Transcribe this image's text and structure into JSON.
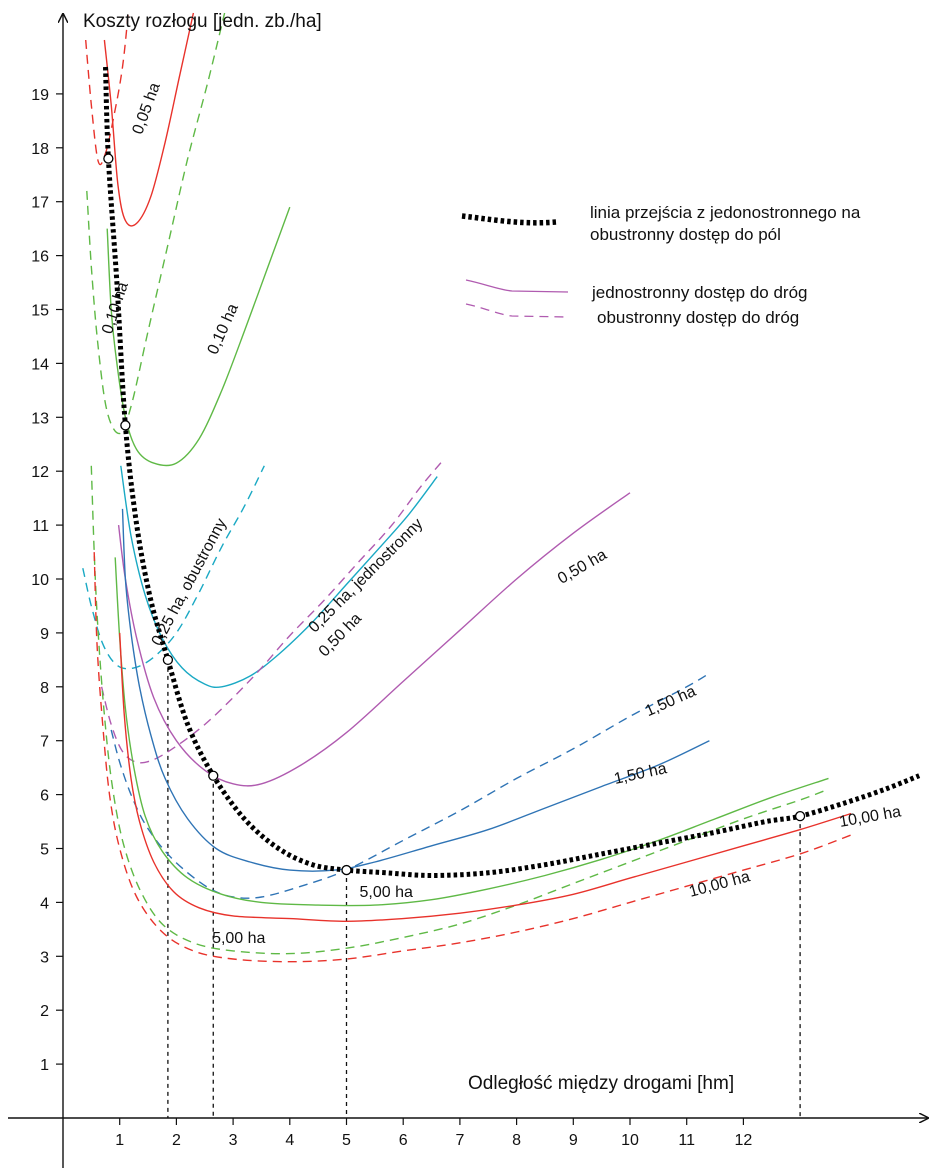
{
  "chart_data": {
    "type": "line",
    "ylabel": "Koszty rozłogu [jedn. zb./ha]",
    "xlabel": "Odległość między drogami [hm]",
    "xlim": [
      0,
      15.1
    ],
    "ylim": [
      0,
      20.5
    ],
    "x_ticks": [
      "1",
      "2",
      "3",
      "4",
      "5",
      "6",
      "7",
      "8",
      "9",
      "10",
      "11",
      "12"
    ],
    "y_ticks": [
      "1",
      "2",
      "3",
      "4",
      "5",
      "6",
      "7",
      "8",
      "9",
      "10",
      "11",
      "12",
      "13",
      "14",
      "15",
      "16",
      "17",
      "18",
      "19"
    ],
    "legend": {
      "transition": "linia przejścia z jedonostronnego na obustronny dostęp do pól",
      "one_sided": "jednostronny dostęp do dróg",
      "two_sided": "obustronny dostęp do dróg"
    },
    "colors": {
      "red": "#e8322b",
      "green": "#5fb946",
      "cyan": "#1aa9c4",
      "magenta": "#b05bb0",
      "blue": "#2f74b5",
      "transition": "#000000"
    },
    "series": [
      {
        "name": "0,05 ha",
        "access": "jednostronny",
        "color": "red",
        "points": [
          [
            0.73,
            20.0
          ],
          [
            0.85,
            18.8
          ],
          [
            0.97,
            17.3
          ],
          [
            1.1,
            16.65
          ],
          [
            1.3,
            16.6
          ],
          [
            1.55,
            17.1
          ],
          [
            1.8,
            18.1
          ],
          [
            2.05,
            19.3
          ],
          [
            2.3,
            20.5
          ]
        ]
      },
      {
        "name": "0,05 ha",
        "access": "obustronny",
        "color": "red",
        "points": [
          [
            0.4,
            20.0
          ],
          [
            0.5,
            18.8
          ],
          [
            0.62,
            17.75
          ],
          [
            0.75,
            17.9
          ],
          [
            0.9,
            18.6
          ],
          [
            1.05,
            19.5
          ],
          [
            1.15,
            20.5
          ]
        ]
      },
      {
        "name": "0,10 ha",
        "access": "jednostronny",
        "color": "green",
        "points": [
          [
            0.78,
            16.5
          ],
          [
            0.85,
            15.0
          ],
          [
            0.95,
            14.0
          ],
          [
            1.1,
            13.0
          ],
          [
            1.3,
            12.4
          ],
          [
            1.6,
            12.15
          ],
          [
            2.0,
            12.15
          ],
          [
            2.4,
            12.6
          ],
          [
            2.8,
            13.5
          ],
          [
            3.2,
            14.6
          ],
          [
            3.6,
            15.75
          ],
          [
            4.0,
            16.9
          ]
        ]
      },
      {
        "name": "0,10 ha",
        "access": "obustronny",
        "color": "green",
        "points": [
          [
            0.42,
            17.2
          ],
          [
            0.5,
            15.8
          ],
          [
            0.62,
            14.3
          ],
          [
            0.78,
            13.1
          ],
          [
            1.0,
            12.7
          ],
          [
            1.2,
            13.2
          ],
          [
            1.5,
            14.6
          ],
          [
            1.85,
            16.2
          ],
          [
            2.2,
            17.8
          ],
          [
            2.55,
            19.2
          ],
          [
            2.85,
            20.5
          ]
        ]
      },
      {
        "name": "0,25 ha, obustronny",
        "access": "obustronny",
        "color": "cyan",
        "points": [
          [
            0.35,
            10.2
          ],
          [
            0.5,
            9.5
          ],
          [
            0.7,
            8.8
          ],
          [
            0.95,
            8.4
          ],
          [
            1.25,
            8.35
          ],
          [
            1.6,
            8.55
          ],
          [
            2.0,
            9.0
          ],
          [
            2.4,
            9.75
          ],
          [
            2.8,
            10.6
          ],
          [
            3.2,
            11.35
          ],
          [
            3.55,
            12.1
          ]
        ]
      },
      {
        "name": "0,25 ha, jednostronny",
        "access": "jednostronny",
        "color": "cyan",
        "points": [
          [
            1.02,
            12.1
          ],
          [
            1.2,
            10.8
          ],
          [
            1.45,
            9.7
          ],
          [
            1.75,
            8.9
          ],
          [
            2.1,
            8.35
          ],
          [
            2.5,
            8.05
          ],
          [
            2.8,
            8.0
          ],
          [
            3.3,
            8.2
          ],
          [
            3.8,
            8.6
          ],
          [
            4.4,
            9.2
          ],
          [
            5.0,
            9.9
          ],
          [
            5.6,
            10.6
          ],
          [
            6.1,
            11.2
          ],
          [
            6.6,
            11.9
          ]
        ]
      },
      {
        "name": "0,50 ha",
        "access": "jednostronny",
        "color": "magenta",
        "points": [
          [
            0.98,
            11.0
          ],
          [
            1.1,
            10.0
          ],
          [
            1.3,
            8.9
          ],
          [
            1.6,
            7.8
          ],
          [
            2.0,
            7.0
          ],
          [
            2.5,
            6.45
          ],
          [
            3.0,
            6.2
          ],
          [
            3.5,
            6.2
          ],
          [
            4.2,
            6.55
          ],
          [
            5.0,
            7.15
          ],
          [
            6.0,
            8.1
          ],
          [
            7.0,
            9.05
          ],
          [
            8.0,
            10.0
          ],
          [
            9.0,
            10.85
          ],
          [
            10.0,
            11.6
          ]
        ]
      },
      {
        "name": "0,50 ha",
        "access": "obustronny",
        "color": "magenta",
        "points": [
          [
            0.68,
            8.0
          ],
          [
            0.85,
            7.3
          ],
          [
            1.05,
            6.8
          ],
          [
            1.3,
            6.6
          ],
          [
            1.6,
            6.65
          ],
          [
            2.0,
            6.9
          ],
          [
            2.5,
            7.3
          ],
          [
            3.0,
            7.8
          ],
          [
            3.5,
            8.35
          ],
          [
            4.0,
            8.95
          ],
          [
            4.6,
            9.6
          ],
          [
            5.2,
            10.3
          ],
          [
            5.8,
            11.0
          ],
          [
            6.3,
            11.7
          ],
          [
            6.7,
            12.2
          ]
        ]
      },
      {
        "name": "1,50 ha",
        "access": "jednostronny",
        "color": "blue",
        "points": [
          [
            1.05,
            11.3
          ],
          [
            1.1,
            10.0
          ],
          [
            1.2,
            9.0
          ],
          [
            1.35,
            8.0
          ],
          [
            1.55,
            7.1
          ],
          [
            1.8,
            6.3
          ],
          [
            2.2,
            5.55
          ],
          [
            2.7,
            5.0
          ],
          [
            3.3,
            4.75
          ],
          [
            4.0,
            4.6
          ],
          [
            4.8,
            4.6
          ],
          [
            5.5,
            4.75
          ],
          [
            6.5,
            5.05
          ],
          [
            7.5,
            5.35
          ],
          [
            8.5,
            5.75
          ],
          [
            9.5,
            6.15
          ],
          [
            10.5,
            6.55
          ],
          [
            11.4,
            7.0
          ]
        ]
      },
      {
        "name": "1,50 ha",
        "access": "obustronny",
        "color": "blue",
        "points": [
          [
            0.85,
            7.2
          ],
          [
            1.0,
            6.6
          ],
          [
            1.2,
            6.0
          ],
          [
            1.45,
            5.45
          ],
          [
            1.8,
            4.95
          ],
          [
            2.2,
            4.55
          ],
          [
            2.6,
            4.25
          ],
          [
            3.0,
            4.1
          ],
          [
            3.5,
            4.1
          ],
          [
            4.2,
            4.3
          ],
          [
            5.0,
            4.6
          ],
          [
            6.0,
            5.15
          ],
          [
            7.0,
            5.7
          ],
          [
            8.0,
            6.3
          ],
          [
            9.0,
            6.85
          ],
          [
            10.0,
            7.45
          ],
          [
            11.0,
            8.0
          ],
          [
            11.4,
            8.25
          ]
        ]
      },
      {
        "name": "5,00 ha",
        "access": "jednostronny",
        "color": "green",
        "points": [
          [
            0.92,
            10.4
          ],
          [
            1.0,
            8.9
          ],
          [
            1.1,
            7.6
          ],
          [
            1.25,
            6.5
          ],
          [
            1.45,
            5.6
          ],
          [
            1.75,
            4.95
          ],
          [
            2.2,
            4.45
          ],
          [
            2.8,
            4.15
          ],
          [
            3.5,
            4.0
          ],
          [
            4.5,
            3.95
          ],
          [
            5.5,
            3.95
          ],
          [
            6.5,
            4.05
          ],
          [
            7.5,
            4.25
          ],
          [
            8.5,
            4.5
          ],
          [
            9.5,
            4.8
          ],
          [
            10.5,
            5.15
          ],
          [
            11.5,
            5.55
          ],
          [
            12.5,
            5.95
          ],
          [
            13.5,
            6.3
          ]
        ]
      },
      {
        "name": "5,00 ha",
        "access": "obustronny",
        "color": "green",
        "points": [
          [
            0.5,
            12.1
          ],
          [
            0.55,
            10.5
          ],
          [
            0.62,
            9.0
          ],
          [
            0.72,
            7.6
          ],
          [
            0.85,
            6.3
          ],
          [
            1.05,
            5.15
          ],
          [
            1.35,
            4.25
          ],
          [
            1.75,
            3.6
          ],
          [
            2.3,
            3.25
          ],
          [
            3.0,
            3.1
          ],
          [
            4.0,
            3.05
          ],
          [
            5.0,
            3.15
          ],
          [
            6.0,
            3.35
          ],
          [
            7.0,
            3.6
          ],
          [
            8.0,
            3.95
          ],
          [
            9.0,
            4.35
          ],
          [
            10.0,
            4.75
          ],
          [
            11.0,
            5.15
          ],
          [
            12.0,
            5.55
          ],
          [
            13.0,
            5.9
          ],
          [
            13.5,
            6.1
          ]
        ]
      },
      {
        "name": "10,00 ha",
        "access": "jednostronny",
        "color": "red",
        "points": [
          [
            1.0,
            9.0
          ],
          [
            1.08,
            7.5
          ],
          [
            1.2,
            6.3
          ],
          [
            1.35,
            5.5
          ],
          [
            1.6,
            4.75
          ],
          [
            1.95,
            4.2
          ],
          [
            2.4,
            3.9
          ],
          [
            3.0,
            3.75
          ],
          [
            4.0,
            3.7
          ],
          [
            5.0,
            3.65
          ],
          [
            6.0,
            3.7
          ],
          [
            7.0,
            3.8
          ],
          [
            8.0,
            3.95
          ],
          [
            9.0,
            4.15
          ],
          [
            10.0,
            4.45
          ],
          [
            11.0,
            4.75
          ],
          [
            12.0,
            5.05
          ],
          [
            13.0,
            5.35
          ],
          [
            13.9,
            5.65
          ]
        ]
      },
      {
        "name": "10,00 ha",
        "access": "obustronny",
        "color": "red",
        "points": [
          [
            0.55,
            10.5
          ],
          [
            0.6,
            8.8
          ],
          [
            0.7,
            7.3
          ],
          [
            0.82,
            6.0
          ],
          [
            1.0,
            5.0
          ],
          [
            1.3,
            4.1
          ],
          [
            1.75,
            3.45
          ],
          [
            2.3,
            3.1
          ],
          [
            3.0,
            2.95
          ],
          [
            4.0,
            2.9
          ],
          [
            5.0,
            2.95
          ],
          [
            6.0,
            3.1
          ],
          [
            7.0,
            3.25
          ],
          [
            8.0,
            3.45
          ],
          [
            9.0,
            3.7
          ],
          [
            10.0,
            4.0
          ],
          [
            11.0,
            4.3
          ],
          [
            12.0,
            4.6
          ],
          [
            13.0,
            4.9
          ],
          [
            13.9,
            5.25
          ]
        ]
      }
    ],
    "transition_line": {
      "points": [
        [
          0.75,
          19.5
        ],
        [
          0.8,
          17.8
        ],
        [
          0.95,
          15.5
        ],
        [
          1.1,
          12.85
        ],
        [
          1.3,
          11.0
        ],
        [
          1.55,
          9.6
        ],
        [
          1.85,
          8.5
        ],
        [
          2.2,
          7.3
        ],
        [
          2.65,
          6.35
        ],
        [
          3.2,
          5.55
        ],
        [
          3.8,
          5.0
        ],
        [
          4.4,
          4.7
        ],
        [
          5.0,
          4.6
        ],
        [
          5.7,
          4.55
        ],
        [
          6.5,
          4.5
        ],
        [
          7.5,
          4.55
        ],
        [
          8.5,
          4.7
        ],
        [
          9.5,
          4.9
        ],
        [
          10.5,
          5.1
        ],
        [
          11.5,
          5.3
        ],
        [
          12.4,
          5.5
        ],
        [
          13.0,
          5.6
        ],
        [
          13.8,
          5.85
        ],
        [
          14.5,
          6.1
        ],
        [
          15.1,
          6.35
        ]
      ],
      "transition_points": [
        [
          0.8,
          17.8
        ],
        [
          1.1,
          12.85
        ],
        [
          1.85,
          8.5
        ],
        [
          2.65,
          6.35
        ],
        [
          5.0,
          4.6
        ],
        [
          13.0,
          5.6
        ]
      ],
      "drop_lines_x": [
        1.85,
        2.65,
        5.0,
        13.0
      ]
    },
    "annotations": [
      {
        "text": "0,05 ha",
        "at": [
          1.55,
          18.7
        ],
        "angle": -70
      },
      {
        "text": "0,10 ha",
        "at": [
          1.0,
          15.0
        ],
        "angle": -72
      },
      {
        "text": "0,10 ha",
        "at": [
          2.9,
          14.6
        ],
        "angle": -66
      },
      {
        "text": "0,25 ha, obustronny",
        "at": [
          2.3,
          9.9
        ],
        "angle": -62
      },
      {
        "text": "0,25 ha, jednostronny",
        "at": [
          5.4,
          10.0
        ],
        "angle": -45
      },
      {
        "text": "0,50 ha",
        "at": [
          4.95,
          8.9
        ],
        "angle": -46
      },
      {
        "text": "0,50 ha",
        "at": [
          9.2,
          10.15
        ],
        "angle": -30
      },
      {
        "text": "1,50 ha",
        "at": [
          10.75,
          7.65
        ],
        "angle": -24
      },
      {
        "text": "1,50 ha",
        "at": [
          10.2,
          6.3
        ],
        "angle": -12
      },
      {
        "text": "5,00 ha",
        "at": [
          5.7,
          4.1
        ],
        "angle": 0
      },
      {
        "text": "5,00 ha",
        "at": [
          3.1,
          3.25
        ],
        "angle": 0
      },
      {
        "text": "10,00 ha",
        "at": [
          14.25,
          5.5
        ],
        "angle": -10
      },
      {
        "text": "10,00 ha",
        "at": [
          11.6,
          4.25
        ],
        "angle": -15
      }
    ]
  }
}
